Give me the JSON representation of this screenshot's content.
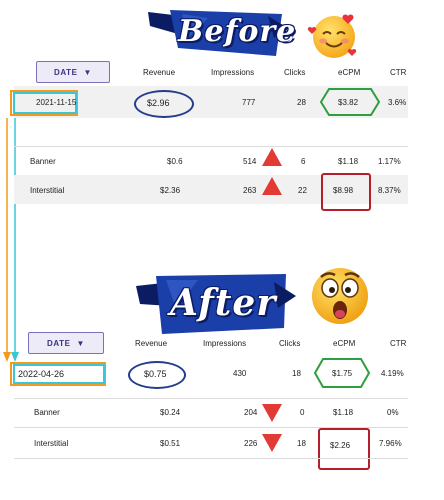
{
  "before": {
    "banner_text": "Before",
    "emoji": "smiling-face-with-hearts",
    "date_button": "DATE",
    "headers": {
      "revenue": "Revenue",
      "impressions": "Impressions",
      "clicks": "Clicks",
      "ecpm": "eCPM",
      "ctr": "CTR"
    },
    "summary": {
      "date": "2021-11-15",
      "revenue": "$2.96",
      "impressions": "777",
      "clicks": "28",
      "ecpm": "$3.82",
      "ctr": "3.6%"
    },
    "rows": [
      {
        "name": "Banner",
        "revenue": "$0.6",
        "impressions": "514",
        "clicks": "6",
        "ecpm": "$1.18",
        "ctr": "1.17%",
        "trend": "up"
      },
      {
        "name": "Interstitial",
        "revenue": "$2.36",
        "impressions": "263",
        "clicks": "22",
        "ecpm": "$8.98",
        "ctr": "8.37%",
        "trend": "up"
      }
    ]
  },
  "after": {
    "banner_text": "After",
    "emoji": "astonished-face",
    "date_button": "DATE",
    "headers": {
      "revenue": "Revenue",
      "impressions": "Impressions",
      "clicks": "Clicks",
      "ecpm": "eCPM",
      "ctr": "CTR"
    },
    "summary": {
      "date": "2022-04-26",
      "revenue": "$0.75",
      "impressions": "430",
      "clicks": "18",
      "ecpm": "$1.75",
      "ctr": "4.19%"
    },
    "rows": [
      {
        "name": "Banner",
        "revenue": "$0.24",
        "impressions": "204",
        "clicks": "0",
        "ecpm": "$1.18",
        "ctr": "0%",
        "trend": "down"
      },
      {
        "name": "Interstitial",
        "revenue": "$0.51",
        "impressions": "226",
        "clicks": "18",
        "ecpm": "$2.26",
        "ctr": "7.96%",
        "trend": "down"
      }
    ]
  },
  "colors": {
    "ribbon": "#1b3fa8",
    "ribbon_dark": "#0b1c63",
    "accent_purple": "#3a3380",
    "oval_blue": "#233e8b",
    "hex_green": "#2e9e3e",
    "box_red": "#b3202a",
    "arrow_orange": "#f29a1f",
    "arrow_cyan": "#3bc6d6",
    "up_red": "#e23b36"
  }
}
